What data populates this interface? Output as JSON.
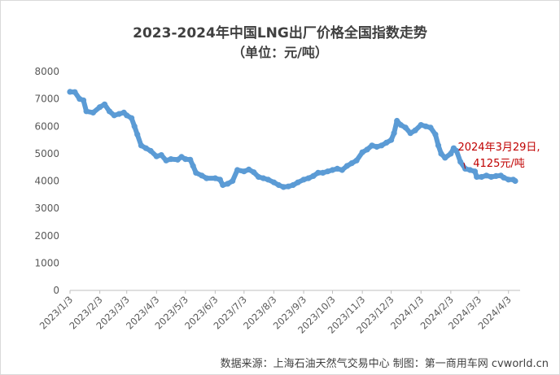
{
  "title": "2023-2024年中国LNG出厂价格全国指数走势",
  "subtitle": "（单位：元/吨）",
  "source": "数据来源：上海石油天然气交易中心 制图：第一商用车网 cvworld.cn",
  "annotation": [
    "2024年3月29日,",
    "4125元/吨"
  ],
  "colors": {
    "series": "#5b9bd5",
    "annotation": "#c00000",
    "axis_text": "#595959"
  },
  "chart_data": {
    "type": "line",
    "title": "2023-2024年中国LNG出厂价格全国指数走势",
    "ylabel": "",
    "xlabel": "",
    "ylim": [
      0,
      8000
    ],
    "yticks": [
      0,
      1000,
      2000,
      3000,
      4000,
      5000,
      6000,
      7000,
      8000
    ],
    "xticks": [
      "2023/1/3",
      "2023/2/3",
      "2023/3/3",
      "2023/4/3",
      "2023/5/3",
      "2023/6/3",
      "2023/7/3",
      "2023/8/3",
      "2023/9/3",
      "2023/10/3",
      "2023/11/3",
      "2023/12/3",
      "2024/1/3",
      "2024/2/3",
      "2024/3/3",
      "2024/4/3"
    ],
    "xrange": [
      "2023/1/3",
      "2024/4/10"
    ],
    "grid": false,
    "legend": "none",
    "series": [
      {
        "points": [
          [
            "2023/1/3",
            7260
          ],
          [
            "2023/1/8",
            7250
          ],
          [
            "2023/1/13",
            7000
          ],
          [
            "2023/1/17",
            6950
          ],
          [
            "2023/1/20",
            6550
          ],
          [
            "2023/1/27",
            6500
          ],
          [
            "2023/2/3",
            6700
          ],
          [
            "2023/2/8",
            6800
          ],
          [
            "2023/2/13",
            6550
          ],
          [
            "2023/2/18",
            6400
          ],
          [
            "2023/2/23",
            6450
          ],
          [
            "2023/2/28",
            6500
          ],
          [
            "2023/3/3",
            6400
          ],
          [
            "2023/3/8",
            6300
          ],
          [
            "2023/3/11",
            6000
          ],
          [
            "2023/3/14",
            5700
          ],
          [
            "2023/3/18",
            5300
          ],
          [
            "2023/3/23",
            5200
          ],
          [
            "2023/3/28",
            5100
          ],
          [
            "2023/4/3",
            4900
          ],
          [
            "2023/4/8",
            4950
          ],
          [
            "2023/4/13",
            4750
          ],
          [
            "2023/4/18",
            4800
          ],
          [
            "2023/4/25",
            4780
          ],
          [
            "2023/4/29",
            4880
          ],
          [
            "2023/5/3",
            4800
          ],
          [
            "2023/5/8",
            4780
          ],
          [
            "2023/5/11",
            4550
          ],
          [
            "2023/5/14",
            4300
          ],
          [
            "2023/5/20",
            4200
          ],
          [
            "2023/5/25",
            4100
          ],
          [
            "2023/6/3",
            4100
          ],
          [
            "2023/6/8",
            4050
          ],
          [
            "2023/6/11",
            3850
          ],
          [
            "2023/6/16",
            3900
          ],
          [
            "2023/6/21",
            4000
          ],
          [
            "2023/6/26",
            4400
          ],
          [
            "2023/7/3",
            4350
          ],
          [
            "2023/7/8",
            4420
          ],
          [
            "2023/7/13",
            4320
          ],
          [
            "2023/7/18",
            4150
          ],
          [
            "2023/7/23",
            4100
          ],
          [
            "2023/7/28",
            4050
          ],
          [
            "2023/8/3",
            3950
          ],
          [
            "2023/8/8",
            3850
          ],
          [
            "2023/8/13",
            3780
          ],
          [
            "2023/8/18",
            3800
          ],
          [
            "2023/8/23",
            3850
          ],
          [
            "2023/8/28",
            3950
          ],
          [
            "2023/9/3",
            4050
          ],
          [
            "2023/9/8",
            4100
          ],
          [
            "2023/9/13",
            4180
          ],
          [
            "2023/9/18",
            4300
          ],
          [
            "2023/9/23",
            4300
          ],
          [
            "2023/9/28",
            4350
          ],
          [
            "2023/10/3",
            4400
          ],
          [
            "2023/10/8",
            4450
          ],
          [
            "2023/10/13",
            4400
          ],
          [
            "2023/10/18",
            4550
          ],
          [
            "2023/10/23",
            4650
          ],
          [
            "2023/10/28",
            4750
          ],
          [
            "2023/11/3",
            5050
          ],
          [
            "2023/11/8",
            5150
          ],
          [
            "2023/11/13",
            5300
          ],
          [
            "2023/11/18",
            5250
          ],
          [
            "2023/11/23",
            5300
          ],
          [
            "2023/11/28",
            5400
          ],
          [
            "2023/12/3",
            5500
          ],
          [
            "2023/12/6",
            5750
          ],
          [
            "2023/12/9",
            6200
          ],
          [
            "2023/12/13",
            6050
          ],
          [
            "2023/12/18",
            5950
          ],
          [
            "2023/12/23",
            5750
          ],
          [
            "2023/12/28",
            5850
          ],
          [
            "2024/1/3",
            6050
          ],
          [
            "2024/1/8",
            6000
          ],
          [
            "2024/1/13",
            5950
          ],
          [
            "2024/1/18",
            5700
          ],
          [
            "2024/1/21",
            5300
          ],
          [
            "2024/1/24",
            5000
          ],
          [
            "2024/1/28",
            4850
          ],
          [
            "2024/2/3",
            5000
          ],
          [
            "2024/2/6",
            5200
          ],
          [
            "2024/2/9",
            5100
          ],
          [
            "2024/2/13",
            4700
          ],
          [
            "2024/2/18",
            4450
          ],
          [
            "2024/2/23",
            4400
          ],
          [
            "2024/2/28",
            4350
          ],
          [
            "2024/3/1",
            4150
          ],
          [
            "2024/3/6",
            4150
          ],
          [
            "2024/3/11",
            4200
          ],
          [
            "2024/3/16",
            4150
          ],
          [
            "2024/3/21",
            4180
          ],
          [
            "2024/3/26",
            4200
          ],
          [
            "2024/3/29",
            4125
          ],
          [
            "2024/4/3",
            4050
          ],
          [
            "2024/4/8",
            4050
          ],
          [
            "2024/4/10",
            4000
          ]
        ]
      }
    ]
  }
}
